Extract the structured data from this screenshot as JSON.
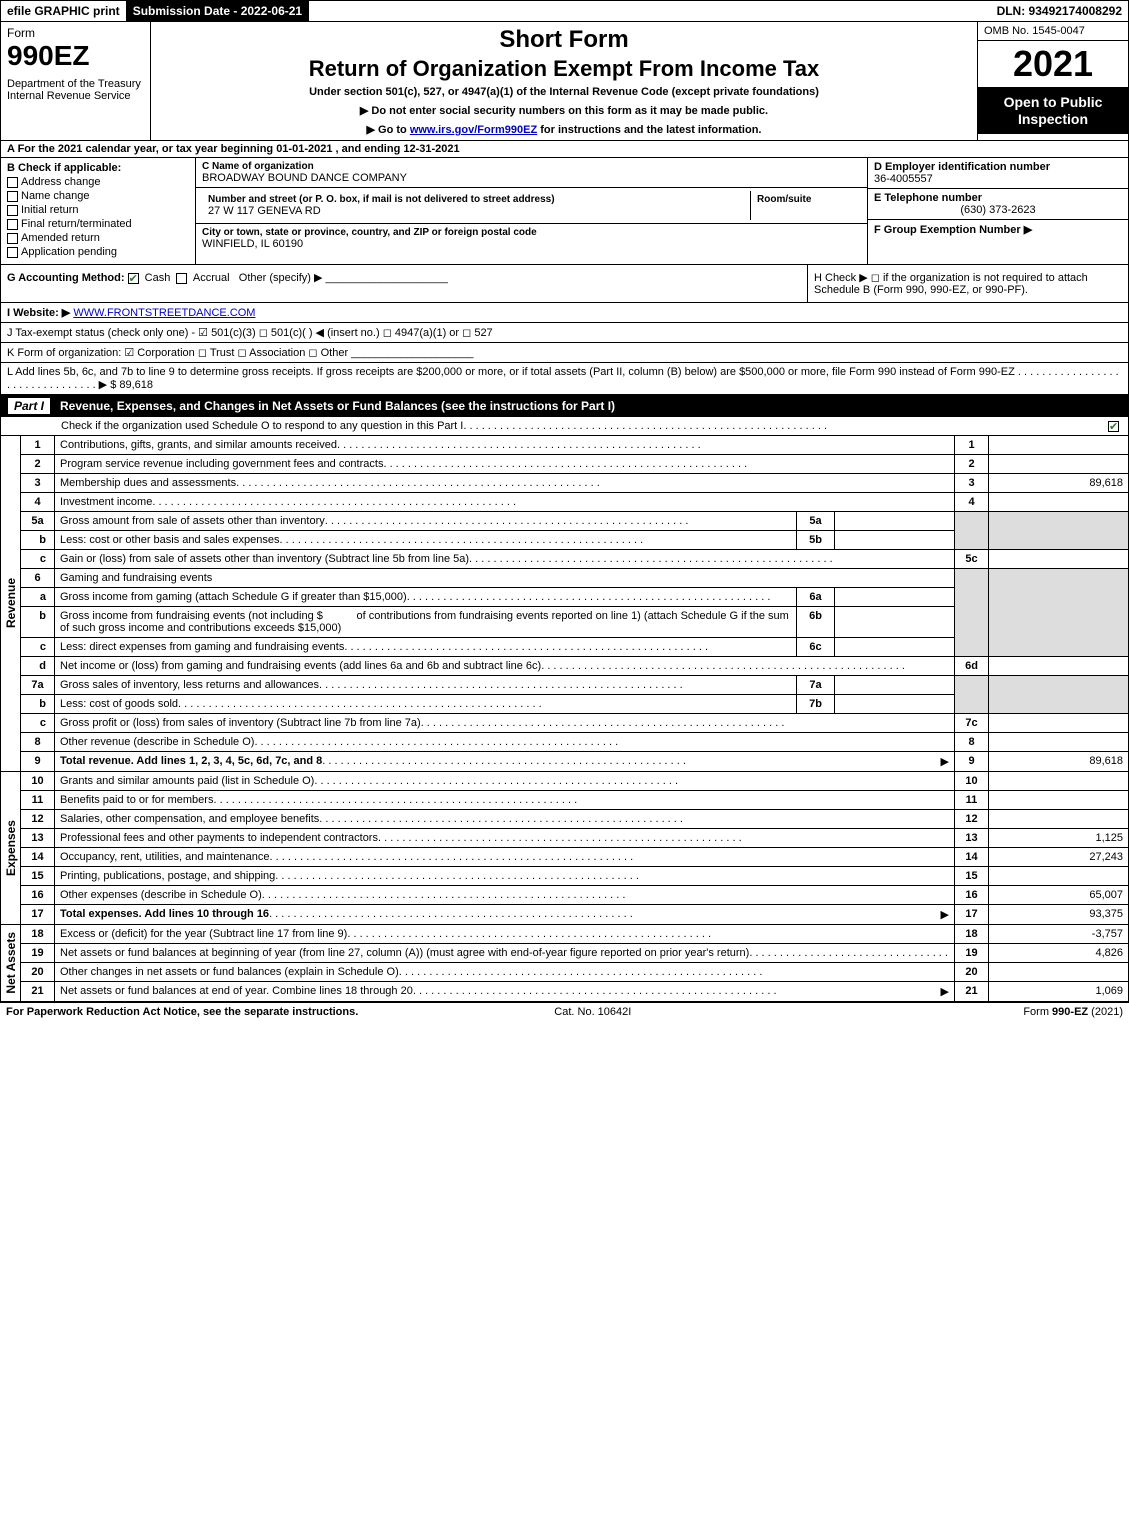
{
  "topbar": {
    "efile": "efile GRAPHIC print",
    "submission_label": "Submission Date - 2022-06-21",
    "dln_label": "DLN: 93492174008292"
  },
  "header": {
    "form_word": "Form",
    "form_no": "990EZ",
    "dept": "Department of the Treasury\nInternal Revenue Service",
    "short": "Short Form",
    "title_main": "Return of Organization Exempt From Income Tax",
    "sub": "Under section 501(c), 527, or 4947(a)(1) of the Internal Revenue Code (except private foundations)",
    "arrow1": "▶ Do not enter social security numbers on this form as it may be made public.",
    "arrow2_pre": "▶ Go to ",
    "arrow2_link": "www.irs.gov/Form990EZ",
    "arrow2_post": " for instructions and the latest information.",
    "omb": "OMB No. 1545-0047",
    "year": "2021",
    "inspect": "Open to Public Inspection"
  },
  "lineA": "A  For the 2021 calendar year, or tax year beginning 01-01-2021 , and ending 12-31-2021",
  "B": {
    "head": "B  Check if applicable:",
    "items": [
      "Address change",
      "Name change",
      "Initial return",
      "Final return/terminated",
      "Amended return",
      "Application pending"
    ]
  },
  "C": {
    "name_label": "C Name of organization",
    "name": "BROADWAY BOUND DANCE COMPANY",
    "street_label": "Number and street (or P. O. box, if mail is not delivered to street address)",
    "room_label": "Room/suite",
    "street": "27 W 117 GENEVA RD",
    "city_label": "City or town, state or province, country, and ZIP or foreign postal code",
    "city": "WINFIELD, IL  60190"
  },
  "DEF": {
    "d_label": "D Employer identification number",
    "d_val": "36-4005557",
    "e_label": "E Telephone number",
    "e_val": "(630) 373-2623",
    "f_label": "F Group Exemption Number  ▶"
  },
  "G": {
    "label": "G Accounting Method:",
    "cash": "Cash",
    "accrual": "Accrual",
    "other": "Other (specify) ▶",
    "other_line": "____________________"
  },
  "H": "H  Check ▶ ◻ if the organization is not required to attach Schedule B (Form 990, 990-EZ, or 990-PF).",
  "I": {
    "label": "I Website: ▶",
    "val": "WWW.FRONTSTREETDANCE.COM"
  },
  "J": "J Tax-exempt status (check only one) - ☑ 501(c)(3) ◻ 501(c)(  ) ◀ (insert no.) ◻ 4947(a)(1) or ◻ 527",
  "K": "K Form of organization:  ☑ Corporation  ◻ Trust  ◻ Association  ◻ Other  ____________________",
  "L": {
    "text": "L Add lines 5b, 6c, and 7b to line 9 to determine gross receipts. If gross receipts are $200,000 or more, or if total assets (Part II, column (B) below) are $500,000 or more, file Form 990 instead of Form 990-EZ  .  .  .  .  .  .  .  .  .  .  .  .  .  .  .  .  .  .  .  .  .  .  .  .  .  .  .  .  .  .  .  .  ▶ $ ",
    "val": "89,618"
  },
  "part1": {
    "label": "Part I",
    "title": "Revenue, Expenses, and Changes in Net Assets or Fund Balances (see the instructions for Part I)",
    "sched_o": "Check if the organization used Schedule O to respond to any question in this Part I"
  },
  "revenue_label": "Revenue",
  "expenses_label": "Expenses",
  "netassets_label": "Net Assets",
  "lines": {
    "1": {
      "desc": "Contributions, gifts, grants, and similar amounts received",
      "ref": "1",
      "amt": ""
    },
    "2": {
      "desc": "Program service revenue including government fees and contracts",
      "ref": "2",
      "amt": ""
    },
    "3": {
      "desc": "Membership dues and assessments",
      "ref": "3",
      "amt": "89,618"
    },
    "4": {
      "desc": "Investment income",
      "ref": "4",
      "amt": ""
    },
    "5a": {
      "desc": "Gross amount from sale of assets other than inventory",
      "inner": "5a"
    },
    "5b": {
      "desc": "Less: cost or other basis and sales expenses",
      "inner": "5b"
    },
    "5c": {
      "desc": "Gain or (loss) from sale of assets other than inventory (Subtract line 5b from line 5a)",
      "ref": "5c",
      "amt": ""
    },
    "6": {
      "desc": "Gaming and fundraising events"
    },
    "6a": {
      "desc": "Gross income from gaming (attach Schedule G if greater than $15,000)",
      "inner": "6a"
    },
    "6b": {
      "desc_pre": "Gross income from fundraising events (not including $",
      "desc_mid": " of contributions from fundraising events reported on line 1) (attach Schedule G if the sum of such gross income and contributions exceeds $15,000)",
      "inner": "6b"
    },
    "6c": {
      "desc": "Less: direct expenses from gaming and fundraising events",
      "inner": "6c"
    },
    "6d": {
      "desc": "Net income or (loss) from gaming and fundraising events (add lines 6a and 6b and subtract line 6c)",
      "ref": "6d",
      "amt": ""
    },
    "7a": {
      "desc": "Gross sales of inventory, less returns and allowances",
      "inner": "7a"
    },
    "7b": {
      "desc": "Less: cost of goods sold",
      "inner": "7b"
    },
    "7c": {
      "desc": "Gross profit or (loss) from sales of inventory (Subtract line 7b from line 7a)",
      "ref": "7c",
      "amt": ""
    },
    "8": {
      "desc": "Other revenue (describe in Schedule O)",
      "ref": "8",
      "amt": ""
    },
    "9": {
      "desc": "Total revenue. Add lines 1, 2, 3, 4, 5c, 6d, 7c, and 8",
      "ref": "9",
      "amt": "89,618",
      "bold": true,
      "arrow": true
    },
    "10": {
      "desc": "Grants and similar amounts paid (list in Schedule O)",
      "ref": "10",
      "amt": ""
    },
    "11": {
      "desc": "Benefits paid to or for members",
      "ref": "11",
      "amt": ""
    },
    "12": {
      "desc": "Salaries, other compensation, and employee benefits",
      "ref": "12",
      "amt": ""
    },
    "13": {
      "desc": "Professional fees and other payments to independent contractors",
      "ref": "13",
      "amt": "1,125"
    },
    "14": {
      "desc": "Occupancy, rent, utilities, and maintenance",
      "ref": "14",
      "amt": "27,243"
    },
    "15": {
      "desc": "Printing, publications, postage, and shipping",
      "ref": "15",
      "amt": ""
    },
    "16": {
      "desc": "Other expenses (describe in Schedule O)",
      "ref": "16",
      "amt": "65,007"
    },
    "17": {
      "desc": "Total expenses. Add lines 10 through 16",
      "ref": "17",
      "amt": "93,375",
      "bold": true,
      "arrow": true
    },
    "18": {
      "desc": "Excess or (deficit) for the year (Subtract line 17 from line 9)",
      "ref": "18",
      "amt": "-3,757"
    },
    "19": {
      "desc": "Net assets or fund balances at beginning of year (from line 27, column (A)) (must agree with end-of-year figure reported on prior year's return)",
      "ref": "19",
      "amt": "4,826"
    },
    "20": {
      "desc": "Other changes in net assets or fund balances (explain in Schedule O)",
      "ref": "20",
      "amt": ""
    },
    "21": {
      "desc": "Net assets or fund balances at end of year. Combine lines 18 through 20",
      "ref": "21",
      "amt": "1,069",
      "arrow": true
    }
  },
  "footer": {
    "left": "For Paperwork Reduction Act Notice, see the separate instructions.",
    "mid": "Cat. No. 10642I",
    "right": "Form 990-EZ (2021)"
  }
}
